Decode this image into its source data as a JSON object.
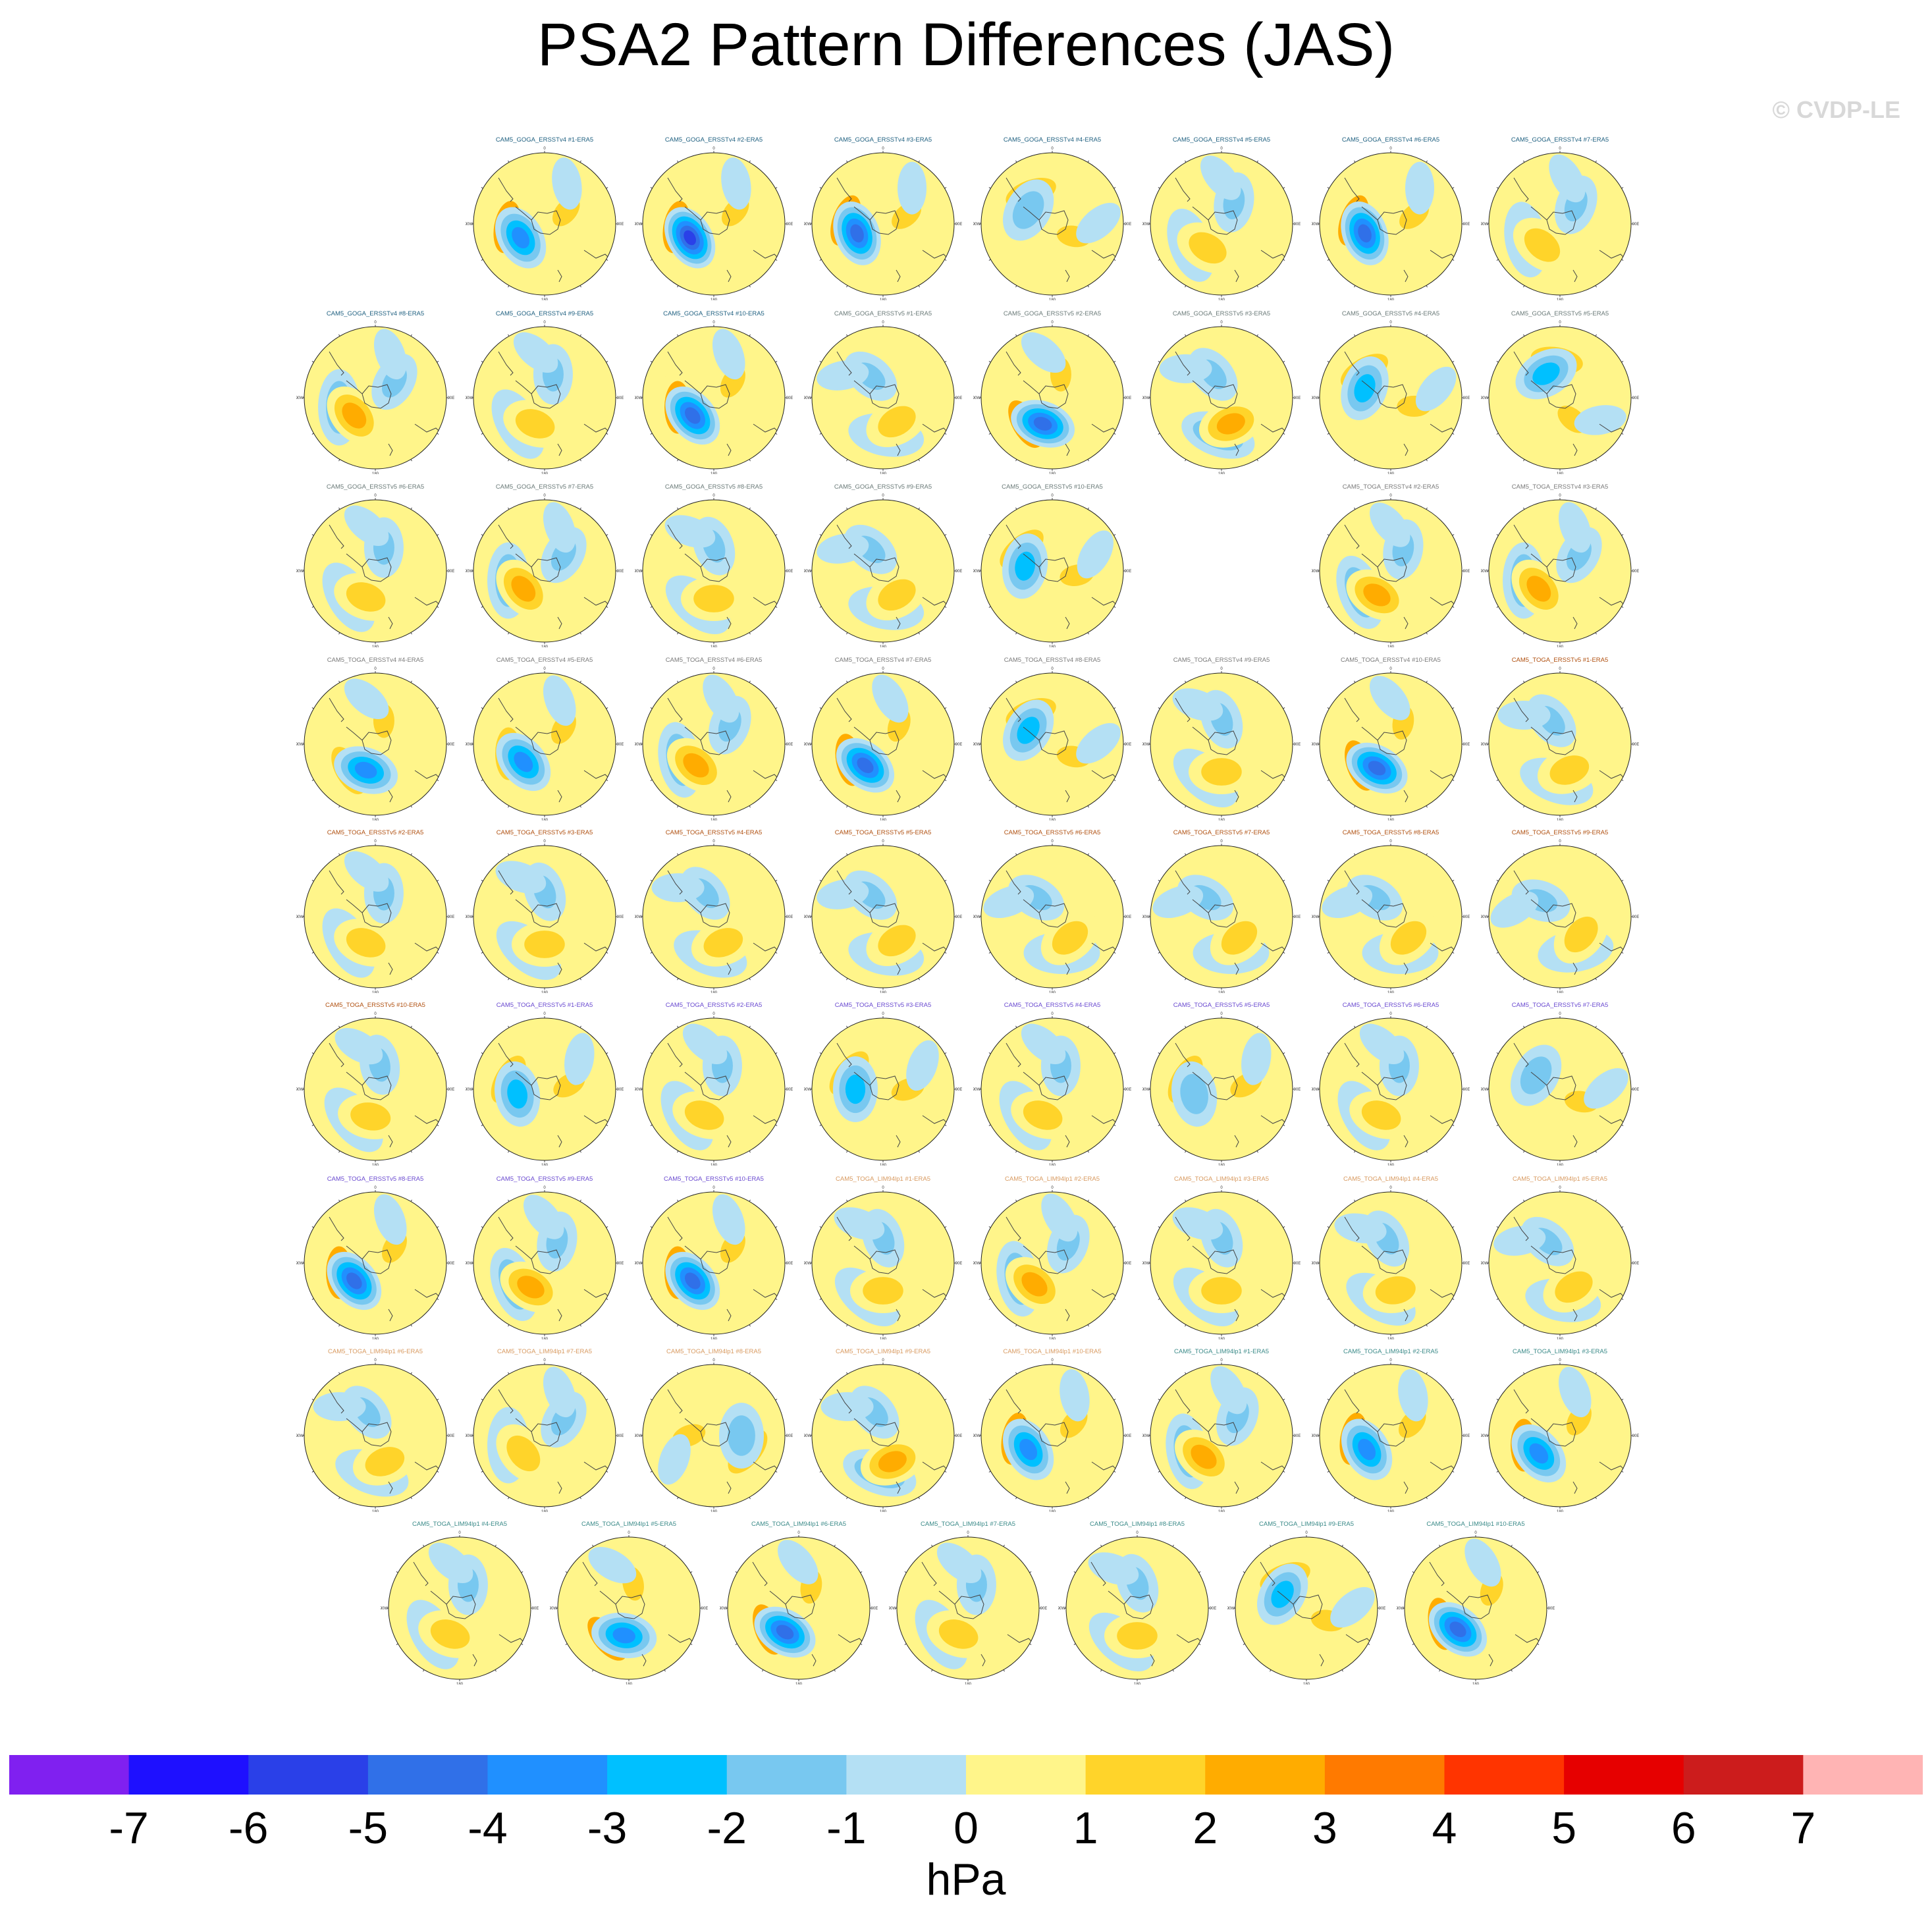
{
  "title": "PSA2 Pattern Differences (JAS)",
  "watermark": "© CVDP-LE",
  "chart_data": {
    "type": "heatmap",
    "title": "PSA2 Pattern Differences (JAS)",
    "projection": "south-polar-stereographic",
    "variable": "sea level pressure pattern difference",
    "colorbar": {
      "units": "hPa",
      "levels": [
        -7,
        -6,
        -5,
        -4,
        -3,
        -2,
        -1,
        0,
        1,
        2,
        3,
        4,
        5,
        6,
        7
      ],
      "colors": [
        "#8020f0",
        "#1e10ff",
        "#2a40e8",
        "#3070e8",
        "#2090ff",
        "#00c0ff",
        "#78c8f0",
        "#b4e0f4",
        "#fff58a",
        "#ffd42a",
        "#ffac00",
        "#ff7a00",
        "#ff3400",
        "#e60000",
        "#cc1c1c",
        "#ffb4b4"
      ]
    },
    "map_tick_labels": [
      "0",
      "30E",
      "60E",
      "90E",
      "120E",
      "150E",
      "180",
      "150W",
      "120W",
      "90W",
      "60W",
      "30W"
    ],
    "panels": [
      {
        "label": "CAM5_GOGA_ERSSTv4 #1-ERA5",
        "row": 0,
        "col": 1,
        "color": "#1f6080",
        "extremum": {
          "value": -4.0,
          "direction": "240"
        }
      },
      {
        "label": "CAM5_GOGA_ERSSTv4 #2-ERA5",
        "row": 0,
        "col": 2,
        "color": "#1f6080",
        "extremum": {
          "value": -5.5,
          "direction": "240"
        }
      },
      {
        "label": "CAM5_GOGA_ERSSTv4 #3-ERA5",
        "row": 0,
        "col": 3,
        "color": "#1f6080",
        "extremum": {
          "value": -4.5,
          "direction": "250"
        }
      },
      {
        "label": "CAM5_GOGA_ERSSTv4 #4-ERA5",
        "row": 0,
        "col": 4,
        "color": "#1f6080",
        "extremum": {
          "value": -2.0,
          "direction": "300"
        }
      },
      {
        "label": "CAM5_GOGA_ERSSTv4 #5-ERA5",
        "row": 0,
        "col": 5,
        "color": "#1f6080",
        "extremum": {
          "value": 1.5,
          "direction": "210"
        }
      },
      {
        "label": "CAM5_GOGA_ERSSTv4 #6-ERA5",
        "row": 0,
        "col": 6,
        "color": "#1f6080",
        "extremum": {
          "value": -5.0,
          "direction": "250"
        }
      },
      {
        "label": "CAM5_GOGA_ERSSTv4 #7-ERA5",
        "row": 0,
        "col": 7,
        "color": "#1f6080",
        "extremum": {
          "value": 2.0,
          "direction": "220"
        }
      },
      {
        "label": "CAM5_GOGA_ERSSTv4 #8-ERA5",
        "row": 1,
        "col": 0,
        "color": "#1f6080",
        "extremum": {
          "value": 3.0,
          "direction": "230"
        }
      },
      {
        "label": "CAM5_GOGA_ERSSTv4 #9-ERA5",
        "row": 1,
        "col": 1,
        "color": "#1f6080",
        "extremum": {
          "value": 1.5,
          "direction": "200"
        }
      },
      {
        "label": "CAM5_GOGA_ERSSTv4 #10-ERA5",
        "row": 1,
        "col": 2,
        "color": "#1f6080",
        "extremum": {
          "value": -4.5,
          "direction": "230"
        }
      },
      {
        "label": "CAM5_GOGA_ERSSTv5 #1-ERA5",
        "row": 1,
        "col": 3,
        "color": "#6a7a78",
        "extremum": {
          "value": 2.0,
          "direction": "150"
        }
      },
      {
        "label": "CAM5_GOGA_ERSSTv5 #2-ERA5",
        "row": 1,
        "col": 4,
        "color": "#6a7a78",
        "extremum": {
          "value": -5.0,
          "direction": "200"
        }
      },
      {
        "label": "CAM5_GOGA_ERSSTv5 #3-ERA5",
        "row": 1,
        "col": 5,
        "color": "#6a7a78",
        "extremum": {
          "value": 3.0,
          "direction": "160"
        }
      },
      {
        "label": "CAM5_GOGA_ERSSTv5 #4-ERA5",
        "row": 1,
        "col": 6,
        "color": "#6a7a78",
        "extremum": {
          "value": -3.0,
          "direction": "290"
        }
      },
      {
        "label": "CAM5_GOGA_ERSSTv5 #5-ERA5",
        "row": 1,
        "col": 7,
        "color": "#6a7a78",
        "extremum": {
          "value": -3.0,
          "direction": "330"
        }
      },
      {
        "label": "CAM5_GOGA_ERSSTv5 #6-ERA5",
        "row": 2,
        "col": 0,
        "color": "#6a7a78",
        "extremum": {
          "value": 2.0,
          "direction": "200"
        }
      },
      {
        "label": "CAM5_GOGA_ERSSTv5 #7-ERA5",
        "row": 2,
        "col": 1,
        "color": "#6a7a78",
        "extremum": {
          "value": 3.0,
          "direction": "230"
        }
      },
      {
        "label": "CAM5_GOGA_ERSSTv5 #8-ERA5",
        "row": 2,
        "col": 2,
        "color": "#6a7a78",
        "extremum": {
          "value": 2.0,
          "direction": "180"
        }
      },
      {
        "label": "CAM5_GOGA_ERSSTv5 #9-ERA5",
        "row": 2,
        "col": 3,
        "color": "#6a7a78",
        "extremum": {
          "value": 2.0,
          "direction": "150"
        }
      },
      {
        "label": "CAM5_GOGA_ERSSTv5 #10-ERA5",
        "row": 2,
        "col": 4,
        "color": "#6a7a78",
        "extremum": {
          "value": -3.0,
          "direction": "280"
        }
      },
      {
        "label": "CAM5_TOGA_ERSSTv4 #2-ERA5",
        "row": 2,
        "col": 6,
        "color": "#7a7a7a",
        "extremum": {
          "value": 2.5,
          "direction": "210"
        }
      },
      {
        "label": "CAM5_TOGA_ERSSTv4 #3-ERA5",
        "row": 2,
        "col": 7,
        "color": "#7a7a7a",
        "extremum": {
          "value": 3.0,
          "direction": "230"
        }
      },
      {
        "label": "CAM5_TOGA_ERSSTv4 #4-ERA5",
        "row": 3,
        "col": 0,
        "color": "#7a7a7a",
        "extremum": {
          "value": -3.5,
          "direction": "200"
        }
      },
      {
        "label": "CAM5_TOGA_ERSSTv4 #5-ERA5",
        "row": 3,
        "col": 1,
        "color": "#7a7a7a",
        "extremum": {
          "value": -3.5,
          "direction": "230"
        }
      },
      {
        "label": "CAM5_TOGA_ERSSTv4 #6-ERA5",
        "row": 3,
        "col": 2,
        "color": "#7a7a7a",
        "extremum": {
          "value": 2.5,
          "direction": "220"
        }
      },
      {
        "label": "CAM5_TOGA_ERSSTv4 #7-ERA5",
        "row": 3,
        "col": 3,
        "color": "#7a7a7a",
        "extremum": {
          "value": -4.5,
          "direction": "220"
        }
      },
      {
        "label": "CAM5_TOGA_ERSSTv4 #8-ERA5",
        "row": 3,
        "col": 4,
        "color": "#7a7a7a",
        "extremum": {
          "value": -2.5,
          "direction": "300"
        }
      },
      {
        "label": "CAM5_TOGA_ERSSTv4 #9-ERA5",
        "row": 3,
        "col": 5,
        "color": "#7a7a7a",
        "extremum": {
          "value": 2.0,
          "direction": "180"
        }
      },
      {
        "label": "CAM5_TOGA_ERSSTv4 #10-ERA5",
        "row": 3,
        "col": 6,
        "color": "#7a7a7a",
        "extremum": {
          "value": -4.5,
          "direction": "210"
        }
      },
      {
        "label": "CAM5_TOGA_ERSSTv5 #1-ERA5",
        "row": 3,
        "col": 7,
        "color": "#b05010",
        "extremum": {
          "value": 2.0,
          "direction": "160"
        }
      },
      {
        "label": "CAM5_TOGA_ERSSTv5 #2-ERA5",
        "row": 4,
        "col": 0,
        "color": "#b05010",
        "extremum": {
          "value": 1.5,
          "direction": "200"
        }
      },
      {
        "label": "CAM5_TOGA_ERSSTv5 #3-ERA5",
        "row": 4,
        "col": 1,
        "color": "#b05010",
        "extremum": {
          "value": 1.5,
          "direction": "180"
        }
      },
      {
        "label": "CAM5_TOGA_ERSSTv5 #4-ERA5",
        "row": 4,
        "col": 2,
        "color": "#b05010",
        "extremum": {
          "value": 1.5,
          "direction": "160"
        }
      },
      {
        "label": "CAM5_TOGA_ERSSTv5 #5-ERA5",
        "row": 4,
        "col": 3,
        "color": "#b05010",
        "extremum": {
          "value": 1.5,
          "direction": "150"
        }
      },
      {
        "label": "CAM5_TOGA_ERSSTv5 #6-ERA5",
        "row": 4,
        "col": 4,
        "color": "#b05010",
        "extremum": {
          "value": 1.5,
          "direction": "140"
        }
      },
      {
        "label": "CAM5_TOGA_ERSSTv5 #7-ERA5",
        "row": 4,
        "col": 5,
        "color": "#b05010",
        "extremum": {
          "value": 1.5,
          "direction": "140"
        }
      },
      {
        "label": "CAM5_TOGA_ERSSTv5 #8-ERA5",
        "row": 4,
        "col": 6,
        "color": "#b05010",
        "extremum": {
          "value": 1.5,
          "direction": "140"
        }
      },
      {
        "label": "CAM5_TOGA_ERSSTv5 #9-ERA5",
        "row": 4,
        "col": 7,
        "color": "#b05010",
        "extremum": {
          "value": 1.5,
          "direction": "130"
        }
      },
      {
        "label": "CAM5_TOGA_ERSSTv5 #10-ERA5",
        "row": 5,
        "col": 0,
        "color": "#b05010",
        "extremum": {
          "value": 1.5,
          "direction": "190"
        }
      },
      {
        "label": "CAM5_TOGA_ERSSTv5 #1-ERA5",
        "row": 5,
        "col": 1,
        "color": "#6a4ad0",
        "extremum": {
          "value": -3.0,
          "direction": "260"
        }
      },
      {
        "label": "CAM5_TOGA_ERSSTv5 #2-ERA5",
        "row": 5,
        "col": 2,
        "color": "#6a4ad0",
        "extremum": {
          "value": 2.0,
          "direction": "200"
        }
      },
      {
        "label": "CAM5_TOGA_ERSSTv5 #3-ERA5",
        "row": 5,
        "col": 3,
        "color": "#6a4ad0",
        "extremum": {
          "value": -3.0,
          "direction": "270"
        }
      },
      {
        "label": "CAM5_TOGA_ERSSTv5 #4-ERA5",
        "row": 5,
        "col": 4,
        "color": "#6a4ad0",
        "extremum": {
          "value": 1.5,
          "direction": "200"
        }
      },
      {
        "label": "CAM5_TOGA_ERSSTv5 #5-ERA5",
        "row": 5,
        "col": 5,
        "color": "#6a4ad0",
        "extremum": {
          "value": -2.0,
          "direction": "260"
        }
      },
      {
        "label": "CAM5_TOGA_ERSSTv5 #6-ERA5",
        "row": 5,
        "col": 6,
        "color": "#6a4ad0",
        "extremum": {
          "value": 1.5,
          "direction": "200"
        }
      },
      {
        "label": "CAM5_TOGA_ERSSTv5 #7-ERA5",
        "row": 5,
        "col": 7,
        "color": "#6a4ad0",
        "extremum": {
          "value": -1.5,
          "direction": "300"
        }
      },
      {
        "label": "CAM5_TOGA_ERSSTv5 #8-ERA5",
        "row": 6,
        "col": 0,
        "color": "#6a4ad0",
        "extremum": {
          "value": -5.0,
          "direction": "230"
        }
      },
      {
        "label": "CAM5_TOGA_ERSSTv5 #9-ERA5",
        "row": 6,
        "col": 1,
        "color": "#6a4ad0",
        "extremum": {
          "value": 2.5,
          "direction": "210"
        }
      },
      {
        "label": "CAM5_TOGA_ERSSTv5 #10-ERA5",
        "row": 6,
        "col": 2,
        "color": "#6a4ad0",
        "extremum": {
          "value": -5.0,
          "direction": "230"
        }
      },
      {
        "label": "CAM5_TOGA_LIM94lp1 #1-ERA5",
        "row": 6,
        "col": 3,
        "color": "#d89a60",
        "extremum": {
          "value": 2.0,
          "direction": "180"
        }
      },
      {
        "label": "CAM5_TOGA_LIM94lp1 #2-ERA5",
        "row": 6,
        "col": 4,
        "color": "#d89a60",
        "extremum": {
          "value": 3.0,
          "direction": "220"
        }
      },
      {
        "label": "CAM5_TOGA_LIM94lp1 #3-ERA5",
        "row": 6,
        "col": 5,
        "color": "#d89a60",
        "extremum": {
          "value": 2.0,
          "direction": "180"
        }
      },
      {
        "label": "CAM5_TOGA_LIM94lp1 #4-ERA5",
        "row": 6,
        "col": 6,
        "color": "#d89a60",
        "extremum": {
          "value": 2.0,
          "direction": "170"
        }
      },
      {
        "label": "CAM5_TOGA_LIM94lp1 #5-ERA5",
        "row": 6,
        "col": 7,
        "color": "#d89a60",
        "extremum": {
          "value": 2.0,
          "direction": "150"
        }
      },
      {
        "label": "CAM5_TOGA_LIM94lp1 #6-ERA5",
        "row": 7,
        "col": 0,
        "color": "#d89a60",
        "extremum": {
          "value": 2.0,
          "direction": "160"
        }
      },
      {
        "label": "CAM5_TOGA_LIM94lp1 #7-ERA5",
        "row": 7,
        "col": 1,
        "color": "#d89a60",
        "extremum": {
          "value": 2.0,
          "direction": "230"
        }
      },
      {
        "label": "CAM5_TOGA_LIM94lp1 #8-ERA5",
        "row": 7,
        "col": 2,
        "color": "#d89a60",
        "extremum": {
          "value": -2.0,
          "direction": "90"
        }
      },
      {
        "label": "CAM5_TOGA_LIM94lp1 #9-ERA5",
        "row": 7,
        "col": 3,
        "color": "#d89a60",
        "extremum": {
          "value": 2.5,
          "direction": "160"
        }
      },
      {
        "label": "CAM5_TOGA_LIM94lp1 #10-ERA5",
        "row": 7,
        "col": 4,
        "color": "#d89a60",
        "extremum": {
          "value": -4.0,
          "direction": "240"
        }
      },
      {
        "label": "CAM5_TOGA_LIM94lp1 #1-ERA5",
        "row": 7,
        "col": 5,
        "color": "#3a8a88",
        "extremum": {
          "value": 3.0,
          "direction": "220"
        }
      },
      {
        "label": "CAM5_TOGA_LIM94lp1 #2-ERA5",
        "row": 7,
        "col": 6,
        "color": "#3a8a88",
        "extremum": {
          "value": -4.0,
          "direction": "240"
        }
      },
      {
        "label": "CAM5_TOGA_LIM94lp1 #3-ERA5",
        "row": 7,
        "col": 7,
        "color": "#3a8a88",
        "extremum": {
          "value": -4.0,
          "direction": "230"
        }
      },
      {
        "label": "CAM5_TOGA_LIM94lp1 #4-ERA5",
        "row": 8,
        "col": 0,
        "color": "#3a8a88",
        "extremum": {
          "value": 2.0,
          "direction": "200"
        }
      },
      {
        "label": "CAM5_TOGA_LIM94lp1 #5-ERA5",
        "row": 8,
        "col": 1,
        "color": "#3a8a88",
        "extremum": {
          "value": -4.0,
          "direction": "190"
        }
      },
      {
        "label": "CAM5_TOGA_LIM94lp1 #6-ERA5",
        "row": 8,
        "col": 2,
        "color": "#3a8a88",
        "extremum": {
          "value": -4.5,
          "direction": "210"
        }
      },
      {
        "label": "CAM5_TOGA_LIM94lp1 #7-ERA5",
        "row": 8,
        "col": 3,
        "color": "#3a8a88",
        "extremum": {
          "value": 2.0,
          "direction": "200"
        }
      },
      {
        "label": "CAM5_TOGA_LIM94lp1 #8-ERA5",
        "row": 8,
        "col": 4,
        "color": "#3a8a88",
        "extremum": {
          "value": 2.0,
          "direction": "180"
        }
      },
      {
        "label": "CAM5_TOGA_LIM94lp1 #9-ERA5",
        "row": 8,
        "col": 5,
        "color": "#3a8a88",
        "extremum": {
          "value": -3.0,
          "direction": "300"
        }
      },
      {
        "label": "CAM5_TOGA_LIM94lp1 #10-ERA5",
        "row": 8,
        "col": 6,
        "color": "#3a8a88",
        "extremum": {
          "value": -4.5,
          "direction": "220"
        }
      }
    ]
  }
}
